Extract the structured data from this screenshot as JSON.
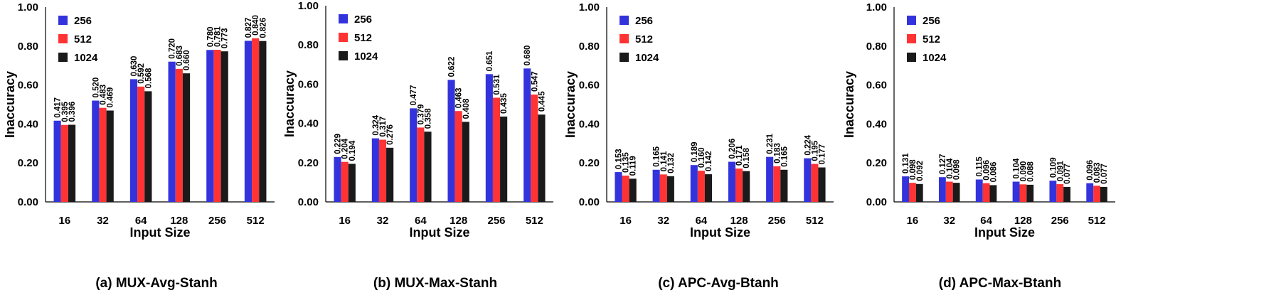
{
  "colors": {
    "256": "#3333dd",
    "512": "#ff3333",
    "1024": "#1a1a1a"
  },
  "chart_data": [
    {
      "type": "bar",
      "caption": "(a) MUX-Avg-Stanh",
      "xlabel": "Input Size",
      "ylabel": "Inaccuracy",
      "ylim": [
        0,
        1
      ],
      "yticks": [
        "0.00",
        "0.20",
        "0.40",
        "0.60",
        "0.80",
        "1.00"
      ],
      "categories": [
        "16",
        "32",
        "64",
        "128",
        "256",
        "512"
      ],
      "legend": "top-left",
      "series": [
        {
          "name": "256",
          "values": [
            0.417,
            0.52,
            0.63,
            0.72,
            0.78,
            0.827
          ],
          "labels": [
            "0.417",
            "0.520",
            "0.630",
            "0.720",
            "0.780",
            "0.827"
          ]
        },
        {
          "name": "512",
          "values": [
            0.395,
            0.483,
            0.592,
            0.683,
            0.781,
            0.84
          ],
          "labels": [
            "0.395",
            "0.483",
            "0.592",
            "0.683",
            "0.781",
            "0.840"
          ]
        },
        {
          "name": "1024",
          "values": [
            0.396,
            0.469,
            0.568,
            0.66,
            0.773,
            0.826
          ],
          "labels": [
            "0.396",
            "0.469",
            "0.568",
            "0.660",
            "0.773",
            "0.826"
          ]
        }
      ]
    },
    {
      "type": "bar",
      "caption": "(b) MUX-Max-Stanh",
      "xlabel": "Input Size",
      "ylabel": "Inaccuracy",
      "ylim": [
        0,
        1
      ],
      "yticks": [
        "0.00",
        "0.20",
        "0.40",
        "0.60",
        "0.80",
        "1.00"
      ],
      "categories": [
        "16",
        "32",
        "64",
        "128",
        "256",
        "512"
      ],
      "legend": "top-left",
      "series": [
        {
          "name": "256",
          "values": [
            0.229,
            0.324,
            0.477,
            0.622,
            0.651,
            0.68
          ],
          "labels": [
            "0.229",
            "0.324",
            "0.477",
            "0.622",
            "0.651",
            "0.680"
          ]
        },
        {
          "name": "512",
          "values": [
            0.204,
            0.317,
            0.379,
            0.463,
            0.531,
            0.547
          ],
          "labels": [
            "0.204",
            "0.317",
            "0.379",
            "0.463",
            "0.531",
            "0.547"
          ]
        },
        {
          "name": "1024",
          "values": [
            0.194,
            0.276,
            0.358,
            0.408,
            0.435,
            0.445
          ],
          "labels": [
            "0.194",
            "0.276",
            "0.358",
            "0.408",
            "0.435",
            "0.445"
          ]
        }
      ]
    },
    {
      "type": "bar",
      "caption": "(c) APC-Avg-Btanh",
      "xlabel": "Input Size",
      "ylabel": "Inaccuracy",
      "ylim": [
        0,
        1
      ],
      "yticks": [
        "0.00",
        "0.20",
        "0.40",
        "0.60",
        "0.80",
        "1.00"
      ],
      "categories": [
        "16",
        "32",
        "64",
        "128",
        "256",
        "512"
      ],
      "legend": "top-left",
      "series": [
        {
          "name": "256",
          "values": [
            0.153,
            0.165,
            0.189,
            0.206,
            0.231,
            0.224
          ],
          "labels": [
            "0.153",
            "0.165",
            "0.189",
            "0.206",
            "0.231",
            "0.224"
          ]
        },
        {
          "name": "512",
          "values": [
            0.135,
            0.141,
            0.16,
            0.171,
            0.183,
            0.195
          ],
          "labels": [
            "0.135",
            "0.141",
            "0.160",
            "0.171",
            "0.183",
            "0.195"
          ]
        },
        {
          "name": "1024",
          "values": [
            0.119,
            0.132,
            0.142,
            0.158,
            0.165,
            0.177
          ],
          "labels": [
            "0.119",
            "0.132",
            "0.142",
            "0.158",
            "0.165",
            "0.177"
          ]
        }
      ]
    },
    {
      "type": "bar",
      "caption": "(d) APC-Max-Btanh",
      "xlabel": "Input Size",
      "ylabel": "Inaccuracy",
      "ylim": [
        0,
        1
      ],
      "yticks": [
        "0.00",
        "0.20",
        "0.40",
        "0.60",
        "0.80",
        "1.00"
      ],
      "categories": [
        "16",
        "32",
        "64",
        "128",
        "256",
        "512"
      ],
      "legend": "top-left",
      "series": [
        {
          "name": "256",
          "values": [
            0.131,
            0.127,
            0.115,
            0.104,
            0.109,
            0.096
          ],
          "labels": [
            "0.131",
            "0.127",
            "0.115",
            "0.104",
            "0.109",
            "0.096"
          ]
        },
        {
          "name": "512",
          "values": [
            0.098,
            0.104,
            0.096,
            0.09,
            0.091,
            0.083
          ],
          "labels": [
            "0.098",
            "0.104",
            "0.096",
            "0.090",
            "0.091",
            "0.083"
          ]
        },
        {
          "name": "1024",
          "values": [
            0.092,
            0.098,
            0.086,
            0.088,
            0.077,
            0.077
          ],
          "labels": [
            "0.092",
            "0.098",
            "0.086",
            "0.088",
            "0.077",
            "0.077"
          ]
        }
      ]
    }
  ]
}
